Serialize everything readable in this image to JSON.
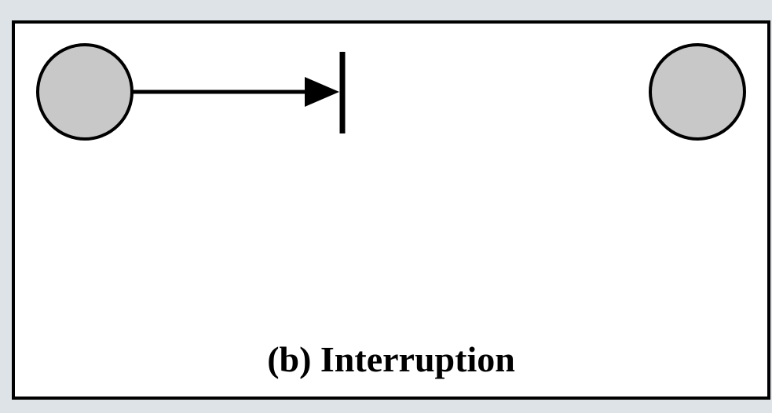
{
  "figure": {
    "caption": "(b) Interruption"
  },
  "colors": {
    "background": "#dde3e6",
    "panel": "#ffffff",
    "stroke": "#000000",
    "node_fill": "#c8c8c8"
  }
}
